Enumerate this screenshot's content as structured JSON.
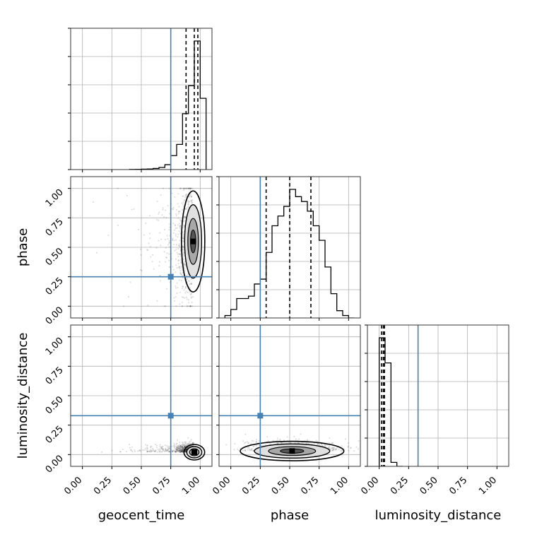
{
  "chart_data": {
    "type": "corner",
    "parameters": [
      "geocent_time",
      "phase",
      "luminosity_distance"
    ],
    "ticks": {
      "values": [
        0.0,
        0.25,
        0.5,
        0.75,
        1.0
      ],
      "labels": [
        "0.00",
        "0.25",
        "0.50",
        "0.75",
        "1.00"
      ]
    },
    "axis_range": [
      -0.1,
      1.1
    ],
    "grid": true,
    "truths": {
      "geocent_time": 0.75,
      "phase": 0.25,
      "luminosity_distance": 0.33
    },
    "colors": {
      "truth": "#4682b4",
      "hist": "#000000",
      "grid": "#b0b0b0",
      "density": "#000000"
    },
    "marginals": {
      "geocent_time": {
        "bins": [
          0.4,
          0.45,
          0.5,
          0.55,
          0.6,
          0.65,
          0.7,
          0.75,
          0.8,
          0.85,
          0.9,
          0.95,
          1.0,
          1.05
        ],
        "counts": [
          0.01,
          0.02,
          0.03,
          0.04,
          0.08,
          0.15,
          0.35,
          1.0,
          1.8,
          4.0,
          6.0,
          9.2,
          5.1
        ],
        "quantiles": [
          0.88,
          0.95,
          0.98
        ]
      },
      "phase": {
        "bins": [
          -0.05,
          0.0,
          0.05,
          0.1,
          0.15,
          0.2,
          0.25,
          0.3,
          0.35,
          0.4,
          0.45,
          0.5,
          0.55,
          0.6,
          0.65,
          0.7,
          0.75,
          0.8,
          0.85,
          0.9,
          0.95,
          1.0,
          1.05
        ],
        "counts": [
          0.1,
          0.35,
          0.8,
          0.8,
          0.9,
          1.4,
          1.6,
          2.7,
          3.8,
          4.2,
          4.6,
          5.3,
          5.0,
          4.8,
          4.4,
          3.8,
          3.2,
          2.1,
          1.0,
          0.3,
          0.1,
          0.0
        ],
        "quantiles": [
          0.3,
          0.5,
          0.68
        ]
      },
      "luminosity_distance": {
        "bins": [
          0.0,
          0.05,
          0.1,
          0.15,
          0.2
        ],
        "counts": [
          9.7,
          7.8,
          0.3,
          0.0
        ],
        "quantiles": [
          0.02,
          0.035,
          0.045
        ]
      }
    },
    "density_2d": [
      {
        "x": "geocent_time",
        "y": "phase",
        "center": [
          0.94,
          0.55
        ],
        "spread": [
          0.045,
          0.26
        ]
      },
      {
        "x": "geocent_time",
        "y": "luminosity_distance",
        "center": [
          0.95,
          0.02
        ],
        "spread": [
          0.04,
          0.04
        ]
      },
      {
        "x": "phase",
        "y": "luminosity_distance",
        "center": [
          0.52,
          0.03
        ],
        "spread": [
          0.2,
          0.05
        ]
      }
    ]
  }
}
